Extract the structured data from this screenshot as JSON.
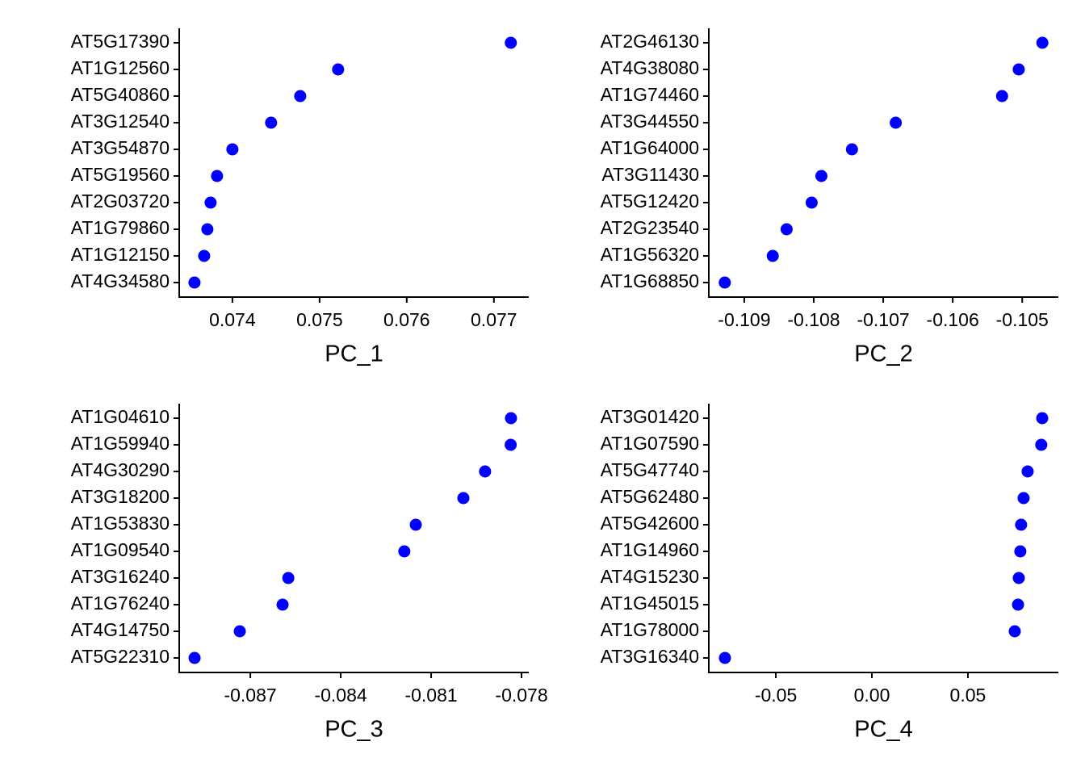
{
  "chart_data": [
    {
      "type": "dot",
      "x_label": "PC_1",
      "color": "#0000ff",
      "categories": [
        "AT5G17390",
        "AT1G12560",
        "AT5G40860",
        "AT3G12540",
        "AT3G54870",
        "AT5G19560",
        "AT2G03720",
        "AT1G79860",
        "AT1G12150",
        "AT4G34580"
      ],
      "values": [
        0.077194,
        0.075213,
        0.074778,
        0.074444,
        0.074,
        0.073824,
        0.07375,
        0.073713,
        0.073676,
        0.073565
      ],
      "xlim": [
        0.07339,
        0.0774
      ],
      "xticks": [
        0.074,
        0.075,
        0.076,
        0.077
      ]
    },
    {
      "type": "dot",
      "x_label": "PC_2",
      "color": "#0000ff",
      "categories": [
        "AT2G46130",
        "AT4G38080",
        "AT1G74460",
        "AT3G44550",
        "AT1G64000",
        "AT3G11430",
        "AT5G12420",
        "AT2G23540",
        "AT1G56320",
        "AT1G68850"
      ],
      "values": [
        -0.10471,
        -0.10505,
        -0.10529,
        -0.10682,
        -0.10745,
        -0.10789,
        -0.10803,
        -0.10839,
        -0.10859,
        -0.10928
      ],
      "xlim": [
        -0.10951,
        -0.10448
      ],
      "xticks": [
        -0.109,
        -0.108,
        -0.107,
        -0.106,
        -0.105
      ]
    },
    {
      "type": "dot",
      "x_label": "PC_3",
      "color": "#0000ff",
      "categories": [
        "AT1G04610",
        "AT1G59940",
        "AT4G30290",
        "AT3G18200",
        "AT1G53830",
        "AT1G09540",
        "AT3G16240",
        "AT1G76240",
        "AT4G14750",
        "AT5G22310"
      ],
      "values": [
        -0.07835,
        -0.07836,
        -0.07921,
        -0.07993,
        -0.08151,
        -0.08189,
        -0.08574,
        -0.08593,
        -0.08735,
        -0.08885
      ],
      "xlim": [
        -0.08936,
        -0.07776
      ],
      "xticks": [
        -0.087,
        -0.084,
        -0.081,
        -0.078
      ]
    },
    {
      "type": "dot",
      "x_label": "PC_4",
      "color": "#0000ff",
      "categories": [
        "AT3G01420",
        "AT1G07590",
        "AT5G47740",
        "AT5G62480",
        "AT5G42600",
        "AT1G14960",
        "AT4G15230",
        "AT1G45015",
        "AT1G78000",
        "AT3G16340"
      ],
      "values": [
        0.0887,
        0.0882,
        0.0811,
        0.079,
        0.0777,
        0.0773,
        0.0765,
        0.0761,
        0.0744,
        -0.0765
      ],
      "xlim": [
        -0.0849,
        0.0971
      ],
      "xticks": [
        -0.05,
        {
          "value": 0,
          "label": "0.00"
        },
        0.05
      ]
    }
  ]
}
